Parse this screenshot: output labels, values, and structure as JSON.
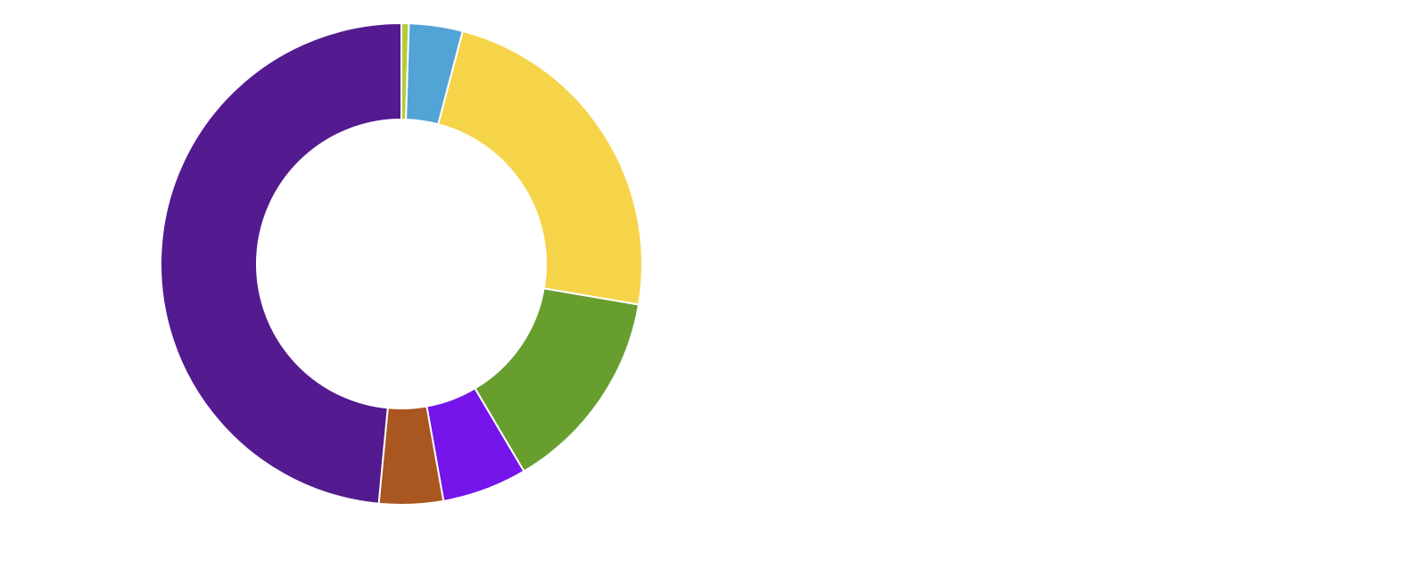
{
  "chart_data": {
    "type": "donut",
    "values": [
      0.5,
      3.6,
      23.6,
      13.8,
      5.7,
      4.3,
      48.5
    ],
    "colors": [
      "#b5cc3a",
      "#52a3d6",
      "#f6d44a",
      "#679e2e",
      "#7514eb",
      "#aa5620",
      "#541a8f"
    ]
  }
}
